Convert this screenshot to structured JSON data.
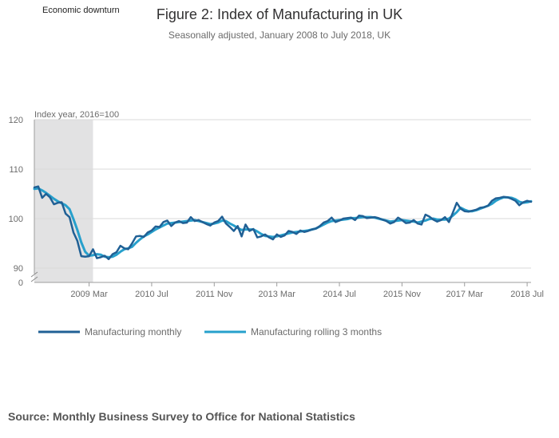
{
  "chart_data": {
    "type": "line",
    "title": "Figure 2: Index of Manufacturing in UK",
    "subtitle": "Seasonally adjusted, January 2008 to July 2018, UK",
    "ylabel": "Index year, 2016=100",
    "ylim": [
      0,
      120
    ],
    "yticks": [
      0,
      90,
      100,
      110,
      120
    ],
    "axis_break": "between 0 and 90",
    "x_start": "2008 Jan",
    "x_end": "2018 Jul",
    "xtick_labels": [
      {
        "label": "2009 Mar",
        "month": 14
      },
      {
        "label": "2010 Jul",
        "month": 30
      },
      {
        "label": "2011 Nov",
        "month": 46
      },
      {
        "label": "2013 Mar",
        "month": 62
      },
      {
        "label": "2014 Jul",
        "month": 78
      },
      {
        "label": "2015 Nov",
        "month": 94
      },
      {
        "label": "2017 Mar",
        "month": 110
      },
      {
        "label": "2018 Jul",
        "month": 126
      }
    ],
    "shaded_region": {
      "label": "Economic downturn",
      "start_month": 0,
      "end_month": 15
    },
    "source": "Source: Monthly Business Survey to Office for National Statistics",
    "series": [
      {
        "name": "Manufacturing monthly",
        "color": "#206095",
        "values": [
          106.3,
          106.5,
          104.2,
          105.0,
          104.3,
          102.9,
          103.2,
          103.3,
          101.0,
          100.3,
          97.2,
          95.5,
          92.4,
          92.3,
          92.4,
          93.8,
          92.0,
          92.2,
          92.5,
          91.8,
          92.8,
          93.2,
          94.5,
          94.0,
          93.8,
          95.0,
          96.4,
          96.5,
          96.3,
          97.2,
          97.6,
          98.4,
          98.3,
          99.3,
          99.6,
          98.5,
          99.2,
          99.5,
          99.1,
          99.2,
          100.3,
          99.5,
          99.7,
          99.3,
          98.9,
          98.6,
          99.2,
          99.5,
          100.4,
          99.0,
          98.3,
          97.5,
          98.5,
          96.4,
          98.8,
          97.5,
          97.9,
          96.2,
          96.4,
          96.8,
          96.2,
          95.8,
          96.8,
          96.3,
          96.6,
          97.5,
          97.3,
          96.9,
          97.6,
          97.3,
          97.5,
          97.8,
          98.0,
          98.5,
          99.2,
          99.5,
          100.2,
          99.3,
          99.6,
          100.0,
          100.1,
          100.2,
          99.7,
          100.6,
          100.5,
          100.1,
          100.2,
          100.3,
          100.1,
          99.8,
          99.5,
          99.0,
          99.3,
          100.2,
          99.7,
          99.1,
          99.2,
          99.7,
          99.0,
          98.8,
          100.8,
          100.4,
          99.8,
          99.4,
          99.7,
          100.3,
          99.3,
          101.2,
          103.2,
          102.0,
          101.5,
          101.4,
          101.6,
          101.8,
          102.2,
          102.3,
          102.6,
          103.6,
          104.1,
          104.2,
          104.4,
          104.3,
          104.0,
          103.6,
          102.7,
          103.3,
          103.6,
          103.4
        ]
      },
      {
        "name": "Manufacturing rolling 3 months",
        "color": "#27a0cc",
        "values": [
          106.0,
          106.1,
          105.7,
          105.2,
          104.6,
          104.0,
          103.5,
          103.1,
          102.7,
          101.9,
          99.9,
          97.7,
          95.2,
          93.3,
          92.5,
          92.6,
          92.8,
          92.7,
          92.3,
          92.2,
          92.3,
          92.7,
          93.3,
          93.8,
          94.0,
          94.3,
          95.1,
          95.8,
          96.4,
          96.8,
          97.3,
          97.8,
          98.2,
          98.6,
          99.0,
          99.1,
          99.2,
          99.3,
          99.4,
          99.5,
          99.6,
          99.7,
          99.5,
          99.3,
          99.1,
          98.9,
          99.0,
          99.2,
          99.6,
          99.5,
          99.0,
          98.6,
          98.1,
          97.7,
          97.8,
          97.8,
          97.8,
          97.4,
          96.9,
          96.5,
          96.4,
          96.3,
          96.4,
          96.6,
          96.8,
          97.0,
          97.2,
          97.3,
          97.4,
          97.5,
          97.6,
          97.8,
          98.0,
          98.4,
          98.8,
          99.2,
          99.5,
          99.6,
          99.7,
          99.8,
          99.9,
          100.1,
          100.1,
          100.2,
          100.3,
          100.3,
          100.3,
          100.2,
          100.0,
          99.8,
          99.6,
          99.4,
          99.5,
          99.6,
          99.7,
          99.6,
          99.5,
          99.4,
          99.2,
          99.4,
          99.6,
          99.9,
          100.0,
          99.8,
          99.8,
          99.8,
          100.0,
          100.6,
          101.3,
          102.2,
          101.8,
          101.5,
          101.5,
          101.7,
          102.0,
          102.3,
          102.6,
          103.0,
          103.6,
          104.0,
          104.3,
          104.3,
          104.2,
          103.9,
          103.4,
          103.2,
          103.3,
          103.5
        ]
      }
    ]
  }
}
